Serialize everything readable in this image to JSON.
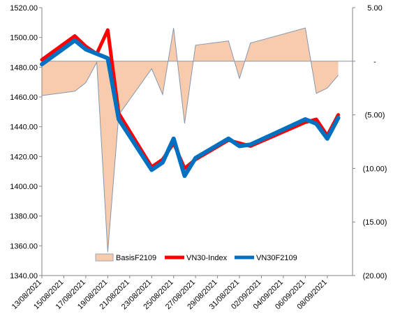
{
  "chart_data": {
    "type": "line",
    "title": "",
    "x": [
      "13/08/2021",
      "16/08/2021",
      "17/08/2021",
      "18/08/2021",
      "19/08/2021",
      "20/08/2021",
      "23/08/2021",
      "24/08/2021",
      "25/08/2021",
      "26/08/2021",
      "27/08/2021",
      "30/08/2021",
      "31/08/2021",
      "01/09/2021",
      "06/09/2021",
      "07/09/2021",
      "08/09/2021",
      "09/09/2021"
    ],
    "x_tick_labels": [
      "13/08/2021",
      "15/08/2021",
      "17/08/2021",
      "19/08/2021",
      "21/08/2021",
      "23/08/2021",
      "25/08/2021",
      "27/08/2021",
      "29/08/2021",
      "31/08/2021",
      "02/09/2021",
      "04/09/2021",
      "06/09/2021",
      "08/09/2021"
    ],
    "left_axis": {
      "ylim": [
        1340,
        1520
      ],
      "ticks": [
        "1340.00",
        "1360.00",
        "1380.00",
        "1400.00",
        "1420.00",
        "1440.00",
        "1460.00",
        "1480.00",
        "1500.00",
        "1520.00"
      ]
    },
    "right_axis": {
      "ylim": [
        -20,
        5
      ],
      "ticks": [
        "5.00",
        "-",
        "(5.00)",
        "(10.00)",
        "(15.00)",
        "(20.00)"
      ]
    },
    "series": [
      {
        "name": "BasisF2109",
        "type": "area",
        "axis": "right",
        "color": "#f8cbad",
        "line_color": "#8497b0",
        "values": [
          -3.2,
          -2.8,
          -2.0,
          -0.1,
          -17.8,
          -5.0,
          -0.7,
          -3.1,
          3.1,
          -5.8,
          1.5,
          1.9,
          -1.6,
          1.7,
          3.1,
          -3.0,
          -2.5,
          -1.3
        ]
      },
      {
        "name": "VN30-Index",
        "type": "line",
        "axis": "left",
        "color": "#ff0000",
        "values": [
          1485,
          1501,
          1494,
          1489,
          1505,
          1449,
          1413,
          1418,
          1429,
          1412,
          1418,
          1431,
          1429,
          1427,
          1443,
          1445,
          1434,
          1448
        ]
      },
      {
        "name": "VN30F2109",
        "type": "line",
        "axis": "left",
        "color": "#0070c0",
        "values": [
          1482,
          1498,
          1492,
          1489,
          1486,
          1445,
          1411,
          1416,
          1432,
          1407,
          1419,
          1432,
          1427,
          1428,
          1445,
          1442,
          1432,
          1446
        ]
      }
    ],
    "legend": {
      "placement": "bottom-inside"
    },
    "grid": false
  }
}
